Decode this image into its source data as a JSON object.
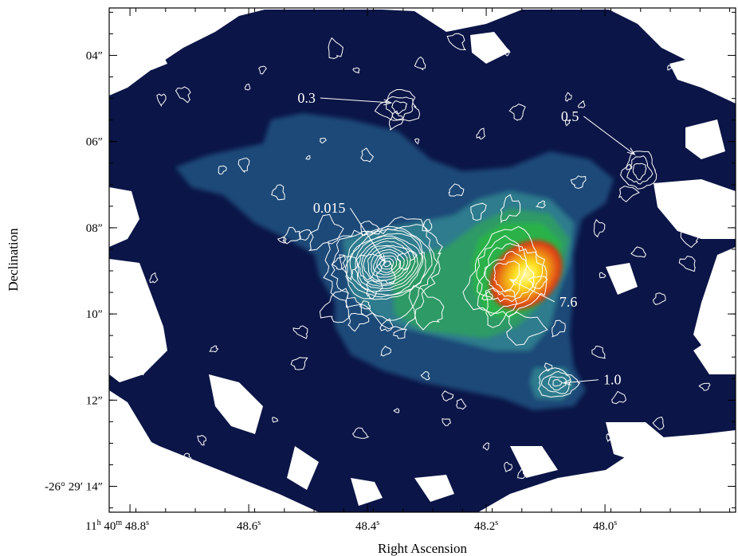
{
  "chart_data": {
    "type": "contour",
    "xlabel": "Right Ascension",
    "ylabel": "Declination",
    "x_ticks": [
      {
        "value": 48.8,
        "h": "11",
        "m": "40",
        "label": "48.8",
        "unit": "s",
        "first": true
      },
      {
        "value": 48.6,
        "label": "48.6",
        "unit": "s"
      },
      {
        "value": 48.4,
        "label": "48.4",
        "unit": "s"
      },
      {
        "value": 48.2,
        "label": "48.2",
        "unit": "s"
      },
      {
        "value": 48.0,
        "label": "48.0",
        "unit": "s"
      }
    ],
    "y_ticks": [
      {
        "value": 4,
        "label": "04″"
      },
      {
        "value": 6,
        "label": "06″"
      },
      {
        "value": 8,
        "label": "08″"
      },
      {
        "value": 10,
        "label": "10″"
      },
      {
        "value": 12,
        "label": "12″"
      },
      {
        "value": 14,
        "label": "-26° 29′ 14″"
      }
    ],
    "xlim": [
      48.835,
      47.78
    ],
    "ylim": [
      2.9,
      14.6
    ],
    "annotations": [
      {
        "label": "0.3",
        "ra": 48.36,
        "dec": 5.1,
        "side": "left"
      },
      {
        "label": "0.5",
        "ra": 47.95,
        "dec": 6.3,
        "side": "left"
      },
      {
        "label": "0.015",
        "ra": 48.37,
        "dec": 8.8,
        "side": "left"
      },
      {
        "label": "7.6",
        "ra": 48.16,
        "dec": 9.2,
        "side": "right"
      },
      {
        "label": "1.0",
        "ra": 48.07,
        "dec": 11.6,
        "side": "right"
      }
    ],
    "colormap": [
      "#0b1547",
      "#1a4a78",
      "#2e7b8e",
      "#2e9a66",
      "#2ab24a",
      "#c8d020",
      "#d82410",
      "#ffe820"
    ]
  }
}
